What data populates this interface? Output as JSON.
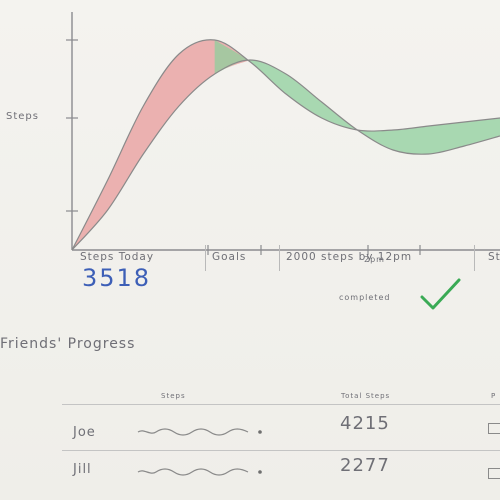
{
  "chart": {
    "y_label": "Steps",
    "x_tick_label": "2pm"
  },
  "chart_data": {
    "type": "area",
    "title": "",
    "xlabel": "",
    "ylabel": "Steps",
    "x_tick_labels": [
      "2pm"
    ],
    "series": [
      {
        "role": "actual",
        "x": [
          0,
          1,
          2,
          3,
          4,
          5,
          6,
          7,
          8,
          9,
          10,
          11,
          12
        ],
        "values": [
          0,
          35,
          72,
          98,
          105,
          94,
          78,
          66,
          60,
          60,
          62,
          64,
          66
        ],
        "color": "#8a8a8a"
      },
      {
        "role": "goal",
        "x": [
          0,
          1,
          2,
          3,
          4,
          5,
          6,
          7,
          8,
          9,
          10,
          11,
          12
        ],
        "values": [
          0,
          20,
          48,
          72,
          88,
          95,
          88,
          74,
          60,
          50,
          48,
          52,
          57
        ],
        "color": "#8a8a8a"
      }
    ],
    "fill_above_goal_color": "#e89b9b",
    "fill_below_goal_color": "#8fcf9c",
    "grid": false
  },
  "stats": {
    "steps_today_label": "Steps Today",
    "steps_today_value": "3518",
    "goals_label": "Goals",
    "goal_line1": "2000 steps by 12pm",
    "goal_line2": "completed",
    "goal_icon": "check-icon",
    "goal_color": "#3aaa55",
    "next_cut": "St"
  },
  "friends": {
    "title": "Friends' Progress",
    "columns": {
      "steps": "Steps",
      "total": "Total Steps",
      "cut": "P"
    },
    "rows": [
      {
        "name": "Joe",
        "total": "4215"
      },
      {
        "name": "Jill",
        "total": "2277"
      }
    ]
  }
}
